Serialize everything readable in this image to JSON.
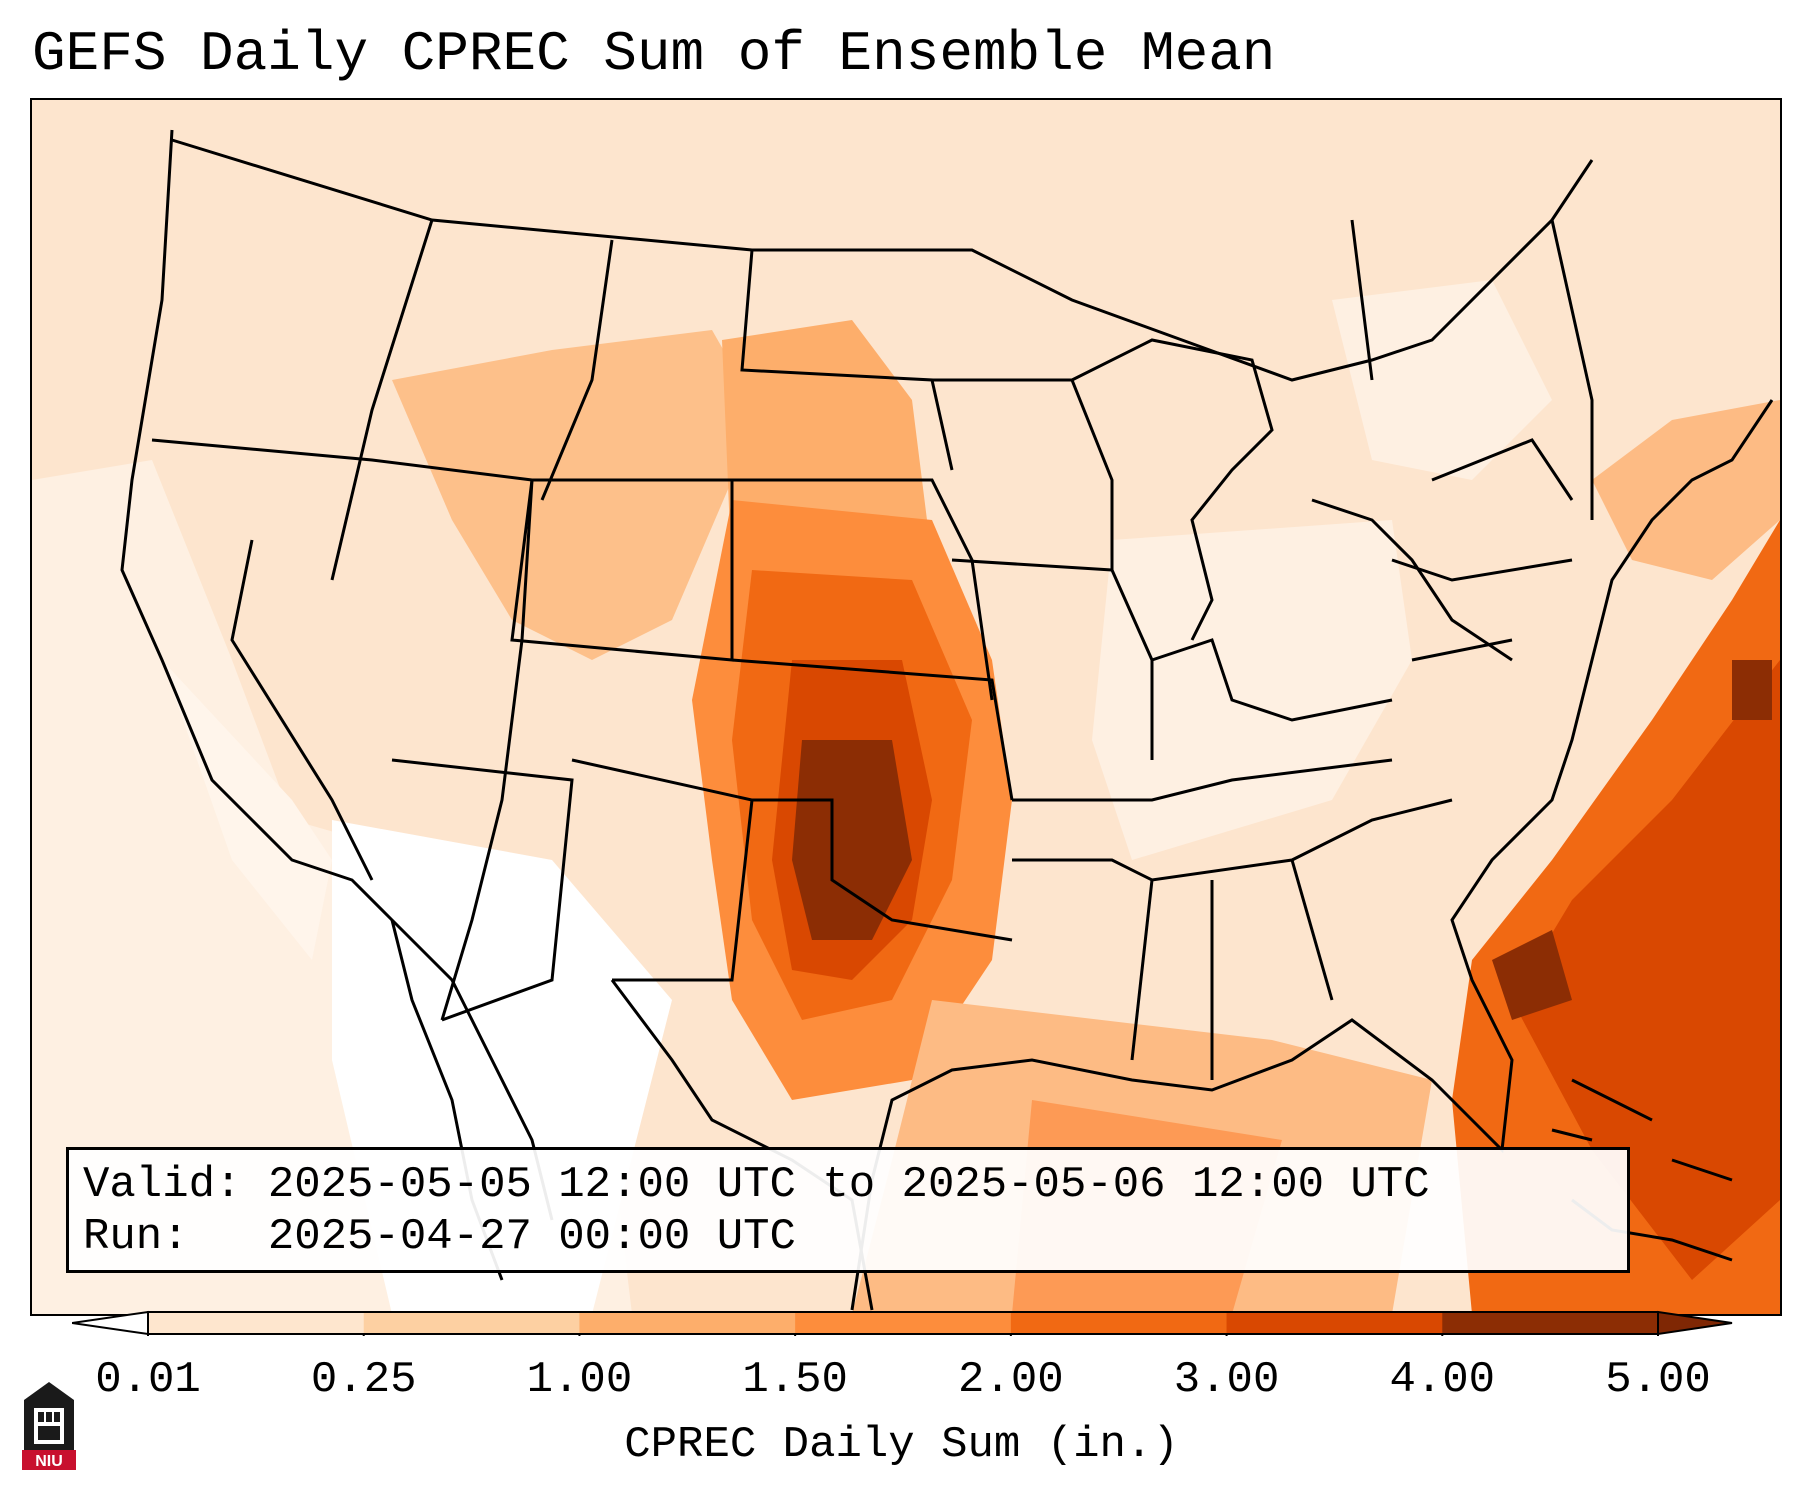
{
  "title": "GEFS Daily CPREC Sum of Ensemble Mean",
  "info_box": {
    "valid_line": "Valid: 2025-05-05 12:00 UTC to 2025-05-06 12:00 UTC",
    "run_line": "Run:   2025-04-27 00:00 UTC"
  },
  "colorbar": {
    "label": "CPREC Daily Sum (in.)",
    "ticks": [
      "0.01",
      "0.25",
      "1.00",
      "1.50",
      "2.00",
      "3.00",
      "4.00",
      "5.00"
    ],
    "colors": [
      "#fff5eb",
      "#fee6ce",
      "#fdd0a2",
      "#fdae6b",
      "#fd8d3c",
      "#f16913",
      "#d94801",
      "#8c2d04"
    ],
    "under_color": "#ffffff",
    "over_color": "#7f2704"
  },
  "logo": {
    "text": "NIU"
  }
}
